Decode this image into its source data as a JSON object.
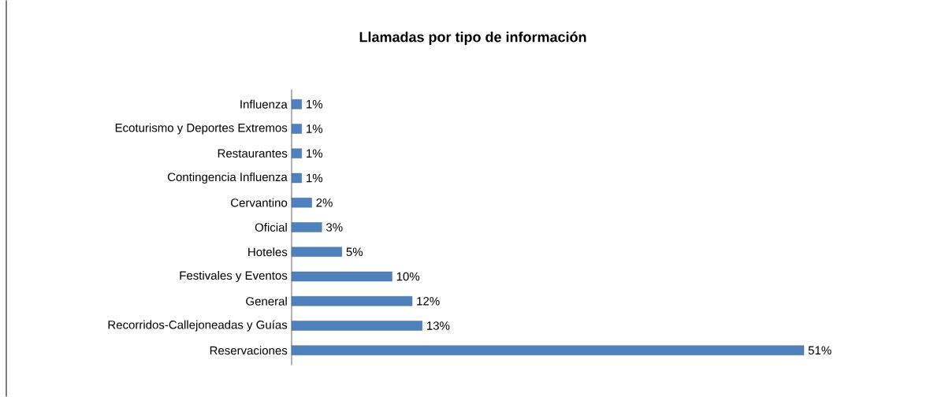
{
  "chart_data": {
    "type": "bar",
    "orientation": "horizontal",
    "title": "Llamadas por tipo de información",
    "categories": [
      "Influenza",
      "Ecoturismo y Deportes Extremos",
      "Restaurantes",
      "Contingencia Influenza",
      "Cervantino",
      "Oficial",
      "Hoteles",
      "Festivales y Eventos",
      "General",
      "Recorridos-Callejoneadas y Guías",
      "Reservaciones"
    ],
    "values": [
      1,
      1,
      1,
      1,
      2,
      3,
      5,
      10,
      12,
      13,
      51
    ],
    "value_labels": [
      "1%",
      "1%",
      "1%",
      "1%",
      "2%",
      "3%",
      "5%",
      "10%",
      "12%",
      "13%",
      "51%"
    ],
    "color": "#4f81bd",
    "xlim": [
      0,
      51
    ],
    "tick_labels": "y"
  }
}
